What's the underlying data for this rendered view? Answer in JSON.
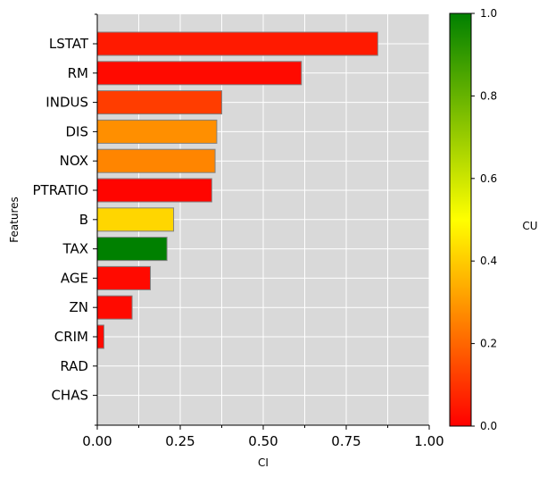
{
  "chart_data": {
    "type": "bar",
    "orientation": "horizontal",
    "categories": [
      "LSTAT",
      "RM",
      "INDUS",
      "DIS",
      "NOX",
      "PTRATIO",
      "B",
      "TAX",
      "AGE",
      "ZN",
      "CRIM",
      "RAD",
      "CHAS"
    ],
    "values": [
      0.845,
      0.615,
      0.375,
      0.36,
      0.355,
      0.345,
      0.23,
      0.21,
      0.16,
      0.105,
      0.02,
      0.0,
      0.0
    ],
    "color_values": [
      0.05,
      0.02,
      0.12,
      0.28,
      0.26,
      0.01,
      0.42,
      1.0,
      0.02,
      0.02,
      0.02,
      0.0,
      0.0
    ],
    "xlabel": "CI",
    "ylabel": "Features",
    "xlim": [
      0,
      1
    ],
    "xticks": [
      "0.00",
      "0.25",
      "0.50",
      "0.75",
      "1.00"
    ],
    "grid": true,
    "colorbar": {
      "label": "CU",
      "range": [
        0,
        1
      ],
      "ticks": [
        "0.0",
        "0.2",
        "0.4",
        "0.6",
        "0.8",
        "1.0"
      ],
      "colors": [
        "#ff0000",
        "#ffff00",
        "#008000"
      ]
    },
    "background": "#d9d9d9",
    "bar_edge_color": "#808080"
  }
}
